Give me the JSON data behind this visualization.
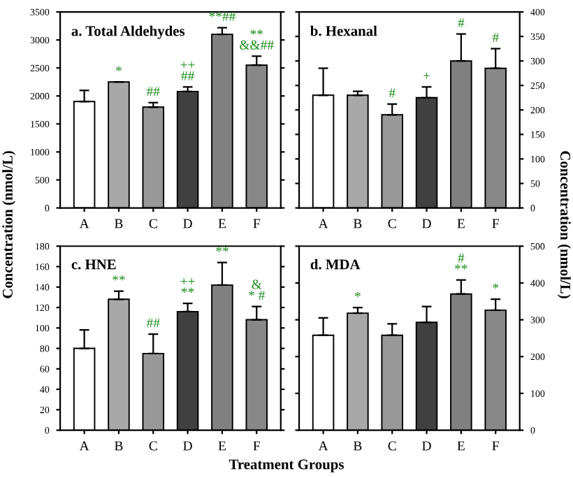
{
  "chart_data": [
    {
      "type": "bar",
      "title": "a. Total Aldehydes",
      "ylabel": "Concentration (nmol/L)",
      "categories": [
        "A",
        "B",
        "C",
        "D",
        "E",
        "F"
      ],
      "values": [
        1900,
        2250,
        1800,
        2080,
        3100,
        2550
      ],
      "errors": [
        [
          1900,
          2100
        ],
        [
          2250,
          2250
        ],
        [
          1800,
          1880
        ],
        [
          2080,
          2160
        ],
        [
          3100,
          3220
        ],
        [
          2550,
          2710
        ]
      ],
      "colors": [
        "#ffffff",
        "#a8a8a8",
        "#989898",
        "#404040",
        "#808080",
        "#888888"
      ],
      "ylim": [
        0,
        3500
      ],
      "yticks": [
        0,
        500,
        1000,
        1500,
        2000,
        2500,
        3000,
        3500
      ],
      "grid": false,
      "annotations": [
        {
          "text": "*",
          "x": "B",
          "y": 2250
        },
        {
          "text": "##",
          "x": "C",
          "y": 1880
        },
        {
          "text": "++\n##",
          "x": "D",
          "y": 2160
        },
        {
          "text": "**##",
          "x": "E",
          "y": 3220
        },
        {
          "text": "**\n&&##",
          "x": "F",
          "y": 2710
        }
      ]
    },
    {
      "type": "bar",
      "title": "b. Hexanal",
      "ylabel": "Concentration (nmol/L)",
      "categories": [
        "A",
        "B",
        "C",
        "D",
        "E",
        "F"
      ],
      "values": [
        230,
        230,
        190,
        225,
        300,
        285
      ],
      "errors": [
        [
          230,
          285
        ],
        [
          230,
          238
        ],
        [
          190,
          212
        ],
        [
          225,
          247
        ],
        [
          300,
          355
        ],
        [
          285,
          325
        ]
      ],
      "colors": [
        "#ffffff",
        "#a8a8a8",
        "#989898",
        "#404040",
        "#808080",
        "#888888"
      ],
      "ylim": [
        0,
        400
      ],
      "yticks": [
        0,
        50,
        100,
        150,
        200,
        250,
        300,
        350,
        400
      ],
      "grid": false,
      "annotations": [
        {
          "text": "#",
          "x": "C",
          "y": 212
        },
        {
          "text": "+",
          "x": "D",
          "y": 247
        },
        {
          "text": "#",
          "x": "E",
          "y": 355
        },
        {
          "text": "#",
          "x": "F",
          "y": 325
        }
      ]
    },
    {
      "type": "bar",
      "title": "c. HNE",
      "xlabel": "Treatment Groups",
      "categories": [
        "A",
        "B",
        "C",
        "D",
        "E",
        "F"
      ],
      "values": [
        80,
        128,
        75,
        116,
        142,
        108
      ],
      "errors": [
        [
          80,
          98
        ],
        [
          128,
          136
        ],
        [
          75,
          94
        ],
        [
          116,
          124
        ],
        [
          142,
          164
        ],
        [
          108,
          121
        ]
      ],
      "colors": [
        "#ffffff",
        "#a8a8a8",
        "#989898",
        "#404040",
        "#808080",
        "#888888"
      ],
      "ylim": [
        0,
        180
      ],
      "yticks": [
        0,
        20,
        40,
        60,
        80,
        100,
        120,
        140,
        160,
        180
      ],
      "grid": false,
      "annotations": [
        {
          "text": "**",
          "x": "B",
          "y": 136
        },
        {
          "text": "##",
          "x": "C",
          "y": 94
        },
        {
          "text": "++\n**",
          "x": "D",
          "y": 124
        },
        {
          "text": "**",
          "x": "E",
          "y": 164
        },
        {
          "text": "&\n* #",
          "x": "F",
          "y": 121
        }
      ]
    },
    {
      "type": "bar",
      "title": "d. MDA",
      "categories": [
        "A",
        "B",
        "C",
        "D",
        "E",
        "F"
      ],
      "values": [
        258,
        318,
        258,
        293,
        370,
        326
      ],
      "errors": [
        [
          258,
          305
        ],
        [
          318,
          333
        ],
        [
          258,
          289
        ],
        [
          293,
          336
        ],
        [
          370,
          408
        ],
        [
          326,
          356
        ]
      ],
      "colors": [
        "#ffffff",
        "#a8a8a8",
        "#989898",
        "#404040",
        "#808080",
        "#888888"
      ],
      "ylim": [
        0,
        500
      ],
      "yticks": [
        0,
        100,
        200,
        300,
        400,
        500
      ],
      "grid": false,
      "annotations": [
        {
          "text": "*",
          "x": "B",
          "y": 333
        },
        {
          "text": "#\n**",
          "x": "E",
          "y": 408
        },
        {
          "text": "*",
          "x": "F",
          "y": 356
        }
      ]
    }
  ]
}
